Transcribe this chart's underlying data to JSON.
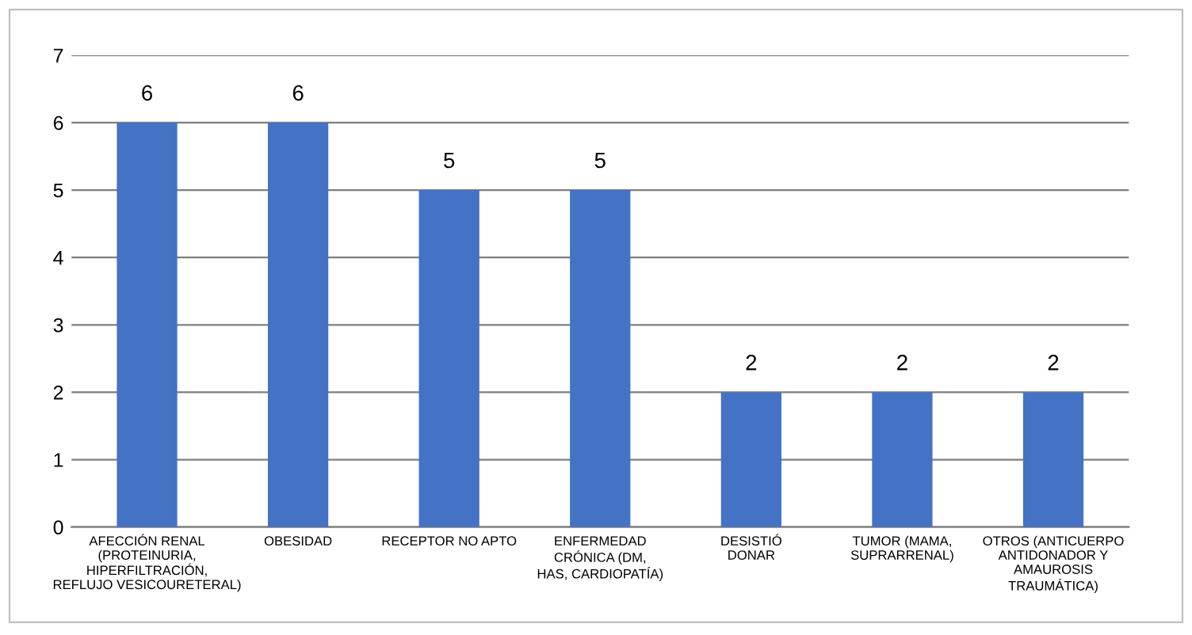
{
  "chart_data": {
    "type": "bar",
    "categories": [
      "AFECCIÓN RENAL\n(PROTEINURIA,\nHIPERFILTRACIÓN,\nREFLUJO VESICOURETERAL)",
      "OBESIDAD",
      "RECEPTOR NO APTO",
      "ENFERMEDAD\nCRÓNICA (DM,\nHAS, CARDIOPATÍA)",
      "DESISTIÓ\nDONAR",
      "TUMOR (MAMA,\nSUPRARRENAL)",
      "OTROS (ANTICUERPO\nANTIDONADOR Y\nAMAUROSIS\nTRAUMÁTICA)"
    ],
    "values": [
      6,
      6,
      5,
      5,
      2,
      2,
      2
    ],
    "color": "#4472c4",
    "ylim": [
      0,
      7
    ],
    "yticks": [
      0,
      1,
      2,
      3,
      4,
      5,
      6,
      7
    ],
    "grid": "y",
    "data_labels": true
  }
}
